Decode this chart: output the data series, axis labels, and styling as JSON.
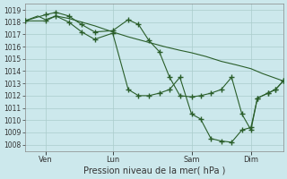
{
  "xlabel": "Pression niveau de la mer( hPa )",
  "ylim": [
    1007.5,
    1019.5
  ],
  "yticks": [
    1008,
    1009,
    1010,
    1011,
    1012,
    1013,
    1014,
    1015,
    1016,
    1017,
    1018,
    1019
  ],
  "xlim": [
    0,
    1.0
  ],
  "xtick_positions": [
    0.08,
    0.34,
    0.645,
    0.875
  ],
  "xtick_labels": [
    "Ven",
    "Lun",
    "Sam",
    "Dim"
  ],
  "bg_color": "#cce8ec",
  "grid_color": "#aacccc",
  "line_color": "#2a5e2a",
  "line1_x": [
    0.0,
    0.05,
    0.08,
    0.12,
    0.17,
    0.22,
    0.27,
    0.34,
    0.4,
    0.47,
    0.54,
    0.6,
    0.645,
    0.7,
    0.76,
    0.82,
    0.875,
    0.92,
    0.96,
    1.0
  ],
  "line1_y": [
    1018.1,
    1018.5,
    1018.2,
    1018.5,
    1018.3,
    1018.0,
    1017.7,
    1017.2,
    1016.8,
    1016.4,
    1016.0,
    1015.7,
    1015.5,
    1015.2,
    1014.8,
    1014.5,
    1014.2,
    1013.8,
    1013.5,
    1013.2
  ],
  "line2_x": [
    0.0,
    0.08,
    0.12,
    0.17,
    0.22,
    0.27,
    0.34,
    0.4,
    0.44,
    0.48,
    0.52,
    0.56,
    0.6,
    0.645,
    0.68,
    0.72,
    0.76,
    0.8,
    0.84,
    0.875,
    0.9,
    0.94,
    0.97,
    1.0
  ],
  "line2_y": [
    1018.1,
    1018.6,
    1018.8,
    1018.5,
    1017.8,
    1017.2,
    1017.3,
    1018.2,
    1017.8,
    1016.5,
    1015.6,
    1013.5,
    1012.0,
    1011.9,
    1012.0,
    1012.2,
    1012.5,
    1013.5,
    1010.5,
    1009.2,
    1011.8,
    1012.2,
    1012.5,
    1013.2
  ],
  "line3_x": [
    0.0,
    0.08,
    0.12,
    0.17,
    0.22,
    0.27,
    0.34,
    0.4,
    0.44,
    0.48,
    0.52,
    0.56,
    0.6,
    0.645,
    0.68,
    0.72,
    0.76,
    0.8,
    0.84,
    0.875,
    0.9,
    0.94,
    0.97,
    1.0
  ],
  "line3_y": [
    1018.1,
    1018.1,
    1018.5,
    1018.0,
    1017.2,
    1016.6,
    1017.1,
    1012.5,
    1012.0,
    1012.0,
    1012.2,
    1012.5,
    1013.5,
    1010.5,
    1010.1,
    1008.5,
    1008.3,
    1008.2,
    1009.2,
    1009.4,
    1011.8,
    1012.2,
    1012.5,
    1013.2
  ]
}
